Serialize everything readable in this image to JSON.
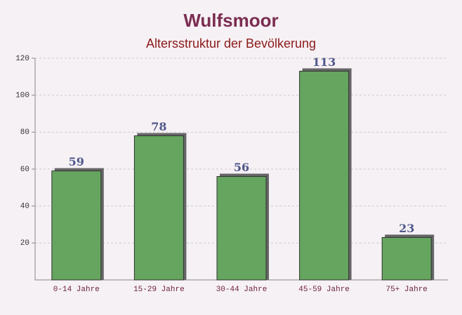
{
  "chart_data": {
    "type": "bar",
    "title": "Wulfsmoor",
    "subtitle": "Altersstruktur der Bevölkerung",
    "categories": [
      "0-14 Jahre",
      "15-29 Jahre",
      "30-44 Jahre",
      "45-59 Jahre",
      "75+ Jahre"
    ],
    "values": [
      59,
      78,
      56,
      113,
      23
    ],
    "color": "#65a55f",
    "ylim": [
      0,
      120
    ],
    "yticks": [
      20,
      40,
      60,
      80,
      100,
      120
    ],
    "grid": true
  }
}
